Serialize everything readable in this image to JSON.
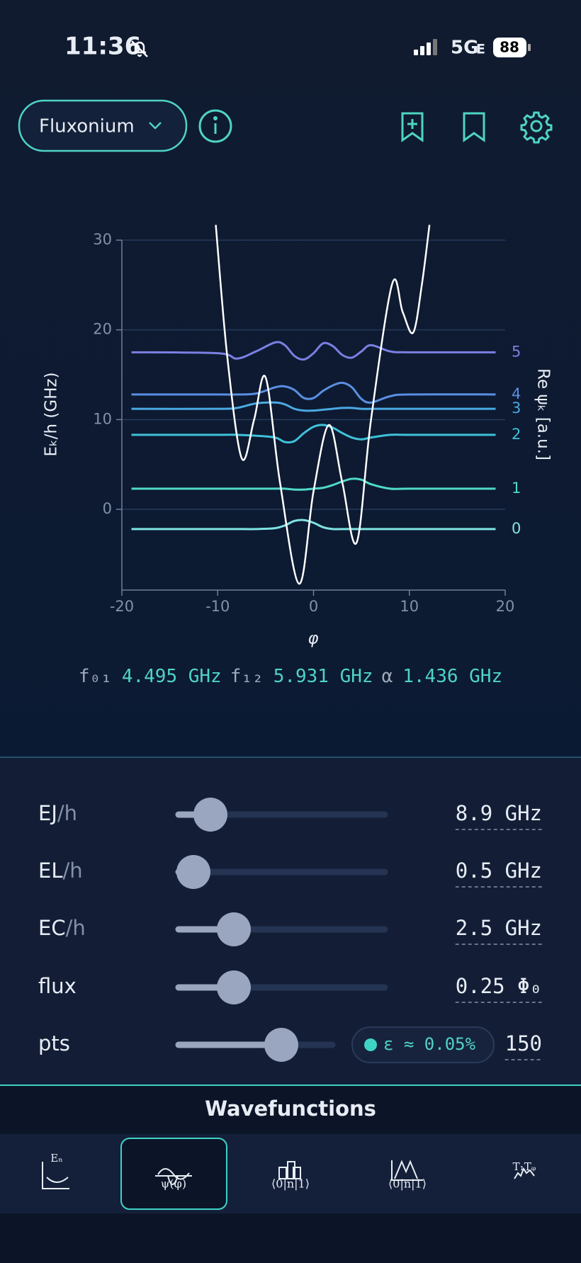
{
  "status_bar": {
    "time": "11:36",
    "network": "5G",
    "network_suffix": "E",
    "battery": "88"
  },
  "header": {
    "model": "Fluxonium"
  },
  "chart_data": {
    "type": "line",
    "y_label": "Eₖ/h  (GHz)",
    "right_label": "Re ψₖ [a.u.]",
    "x_label": "φ",
    "xlim": [
      -20,
      20
    ],
    "ylim": [
      -9,
      30
    ],
    "xticks": [
      -20,
      -10,
      0,
      10,
      20
    ],
    "yticks": [
      0,
      10,
      20,
      30
    ],
    "grid": true,
    "potential": {
      "color": "#ffffff",
      "x": [
        -10.2,
        -9,
        -7.5,
        -6.2,
        -5,
        -3.5,
        -1.5,
        0,
        1.6,
        3,
        4.5,
        6,
        8.2,
        9.3,
        10.4,
        11.3,
        12.1
      ],
      "values": [
        31.7,
        17,
        5.7,
        10,
        14.7,
        3,
        -8.3,
        2,
        9.4,
        3,
        -3.7,
        10,
        25.1,
        22,
        19.7,
        25,
        31.7
      ]
    },
    "series": [
      {
        "name": "0",
        "color": "#7fe3e3",
        "x": [
          -19,
          -10,
          -8,
          -6,
          -4,
          -3,
          -2,
          -1,
          0,
          1,
          2,
          3,
          4,
          5,
          6,
          8,
          10,
          19
        ],
        "values": [
          -2.2,
          -2.2,
          -2.2,
          -2.2,
          -2.1,
          -1.8,
          -1.3,
          -1.2,
          -1.5,
          -2.0,
          -2.2,
          -2.2,
          -2.2,
          -2.2,
          -2.2,
          -2.2,
          -2.2,
          -2.2
        ]
      },
      {
        "name": "1",
        "color": "#4fd9c9",
        "x": [
          -19,
          -10,
          -8,
          -6,
          -4,
          -3,
          -2,
          -1,
          0,
          1,
          2,
          3,
          4,
          5,
          6,
          8,
          10,
          19
        ],
        "values": [
          2.3,
          2.3,
          2.3,
          2.3,
          2.3,
          2.3,
          2.2,
          2.2,
          2.3,
          2.4,
          2.7,
          3.1,
          3.4,
          3.3,
          2.8,
          2.3,
          2.3,
          2.3
        ]
      },
      {
        "name": "2",
        "color": "#3fc2da",
        "x": [
          -19,
          -10,
          -8,
          -6,
          -4,
          -3,
          -2,
          -1,
          0,
          1,
          2,
          3,
          4,
          5,
          6,
          8,
          10,
          19
        ],
        "values": [
          8.3,
          8.3,
          8.3,
          8.2,
          8.0,
          7.5,
          7.6,
          8.5,
          9.2,
          9.4,
          9.1,
          8.5,
          8.0,
          7.8,
          8.0,
          8.3,
          8.3,
          8.3
        ]
      },
      {
        "name": "3",
        "color": "#4aa9e3",
        "x": [
          -19,
          -10,
          -8,
          -6,
          -4,
          -3,
          -2,
          -1,
          0,
          1,
          2,
          3,
          4,
          5,
          6,
          8,
          10,
          19
        ],
        "values": [
          11.2,
          11.2,
          11.3,
          11.8,
          11.9,
          11.7,
          11.2,
          11.0,
          11.0,
          11.1,
          11.2,
          11.3,
          11.3,
          11.2,
          11.2,
          11.2,
          11.2,
          11.2
        ]
      },
      {
        "name": "4",
        "color": "#5a8fe3",
        "x": [
          -19,
          -10,
          -8,
          -6,
          -4,
          -3,
          -2,
          -1,
          0,
          1,
          2,
          3,
          4,
          5,
          6,
          8,
          10,
          19
        ],
        "values": [
          12.8,
          12.8,
          12.8,
          12.9,
          13.6,
          13.7,
          13.3,
          12.4,
          12.4,
          13.2,
          13.8,
          14.1,
          13.6,
          12.3,
          11.9,
          12.6,
          12.8,
          12.8
        ]
      },
      {
        "name": "5",
        "color": "#7b80e3",
        "x": [
          -19,
          -10,
          -8,
          -6,
          -4,
          -3,
          -2,
          -1,
          0,
          1,
          2,
          3,
          4,
          5,
          6,
          8,
          10,
          19
        ],
        "values": [
          17.5,
          17.4,
          16.8,
          17.6,
          18.6,
          18.3,
          17.1,
          16.7,
          17.4,
          18.5,
          18.2,
          17.2,
          16.9,
          17.6,
          18.3,
          17.6,
          17.5,
          17.5
        ]
      }
    ]
  },
  "metrics": [
    {
      "label": "f₀₁",
      "value": "4.495 GHz"
    },
    {
      "label": "f₁₂",
      "value": "5.931 GHz"
    },
    {
      "label": "α",
      "value": "1.436 GHz"
    }
  ],
  "parameters": [
    {
      "name": "EJ",
      "unit": "/h",
      "value": "8.9 GHz"
    },
    {
      "name": "EL",
      "unit": "/h",
      "value": "0.5 GHz"
    },
    {
      "name": "EC",
      "unit": "/h",
      "value": "2.5 GHz"
    },
    {
      "name": "flux",
      "value": "0.25 Φ₀"
    },
    {
      "name": "pts",
      "value": "150",
      "badge": "ε ≈ 0.05%"
    }
  ],
  "view_title": "Wavefunctions",
  "tabs": [
    {
      "label": "Eₙ"
    },
    {
      "label": "ψ(φ)"
    },
    {
      "label": "⟨0|n|1⟩"
    },
    {
      "label": "⟨0|n|1⟩"
    },
    {
      "label": "T₁Tᵩ"
    }
  ]
}
